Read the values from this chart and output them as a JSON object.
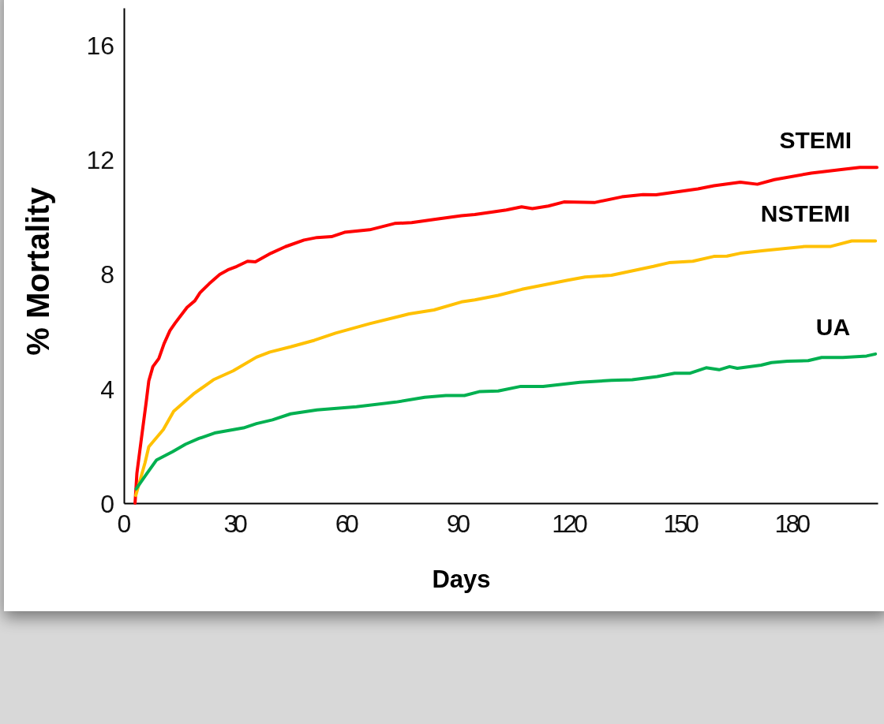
{
  "chart_data": {
    "type": "line",
    "xlabel": "Days",
    "ylabel": "% Mortality",
    "xlim": [
      0,
      203
    ],
    "ylim": [
      0,
      17.3
    ],
    "xticks": [
      0,
      30,
      60,
      90,
      120,
      150,
      180
    ],
    "yticks": [
      0,
      4,
      8,
      12,
      16
    ],
    "grid": false,
    "legend": false,
    "marker": "none",
    "line_style": "solid",
    "series": [
      {
        "name": "STEMI",
        "color": "#ff0000",
        "x": [
          3.0,
          3.5,
          4.6,
          6.0,
          6.7,
          7.8,
          9.4,
          10.8,
          12.4,
          13.8,
          17.0,
          19.1,
          20.5,
          23.0,
          25.8,
          28.0,
          30.4,
          33.3,
          35.4,
          39.6,
          43.5,
          48.5,
          52.0,
          55.9,
          59.4,
          66.2,
          72.9,
          77.5,
          83.9,
          90.9,
          94.5,
          100.8,
          103,
          107.1,
          110,
          114.3,
          118.5,
          126.7,
          134.1,
          139.8,
          143.3,
          154.6,
          158.9,
          166,
          170.6,
          175.2,
          185.1,
          193.6,
          198.2,
          202.8
        ],
        "values": [
          0.0,
          1.05,
          2.15,
          3.53,
          4.27,
          4.77,
          5.05,
          5.57,
          6.03,
          6.29,
          6.84,
          7.07,
          7.35,
          7.67,
          7.99,
          8.15,
          8.27,
          8.45,
          8.43,
          8.73,
          8.96,
          9.19,
          9.28,
          9.31,
          9.46,
          9.55,
          9.77,
          9.8,
          9.92,
          10.04,
          10.08,
          10.2,
          10.24,
          10.35,
          10.29,
          10.38,
          10.52,
          10.5,
          10.7,
          10.78,
          10.77,
          10.98,
          11.09,
          11.21,
          11.14,
          11.3,
          11.53,
          11.66,
          11.73,
          11.73
        ]
      },
      {
        "name": "NSTEMI",
        "color": "#ffc000",
        "x": [
          3.2,
          5.7,
          6.7,
          10.6,
          13.4,
          18.7,
          24.1,
          29.4,
          35.7,
          39.3,
          44.9,
          51.3,
          57.0,
          66.2,
          76.8,
          83.5,
          90.9,
          94.5,
          100.8,
          107.2,
          119.3,
          124.2,
          131.3,
          142.6,
          146.8,
          153.2,
          158.9,
          162.4,
          166,
          172.3,
          183.6,
          190.4,
          196,
          202.4
        ],
        "values": [
          0.27,
          1.42,
          1.97,
          2.57,
          3.21,
          3.81,
          4.31,
          4.62,
          5.1,
          5.28,
          5.46,
          5.69,
          5.94,
          6.27,
          6.61,
          6.75,
          7.03,
          7.1,
          7.26,
          7.47,
          7.78,
          7.9,
          7.96,
          8.27,
          8.4,
          8.45,
          8.62,
          8.63,
          8.73,
          8.82,
          8.97,
          8.97,
          9.16,
          9.16
        ]
      },
      {
        "name": "UA",
        "color": "#00b050",
        "x": [
          3.3,
          6,
          8.8,
          13.1,
          16.6,
          20.2,
          24.4,
          32.2,
          35.7,
          40,
          44.9,
          52,
          62.6,
          73.2,
          81,
          86.7,
          91.7,
          95.9,
          100.8,
          106.9,
          112.9,
          122.8,
          131.3,
          136.9,
          143.6,
          148.3,
          152.5,
          156.8,
          160.3,
          163.1,
          165.2,
          171.6,
          174.4,
          178.7,
          184.3,
          187.9,
          193.6,
          200,
          202.4
        ],
        "values": [
          0.5,
          1.0,
          1.51,
          1.8,
          2.06,
          2.26,
          2.45,
          2.63,
          2.78,
          2.91,
          3.12,
          3.26,
          3.37,
          3.53,
          3.7,
          3.76,
          3.76,
          3.9,
          3.92,
          4.08,
          4.08,
          4.22,
          4.29,
          4.31,
          4.42,
          4.54,
          4.54,
          4.73,
          4.66,
          4.77,
          4.71,
          4.82,
          4.91,
          4.96,
          4.98,
          5.09,
          5.09,
          5.14,
          5.21
        ]
      }
    ]
  }
}
